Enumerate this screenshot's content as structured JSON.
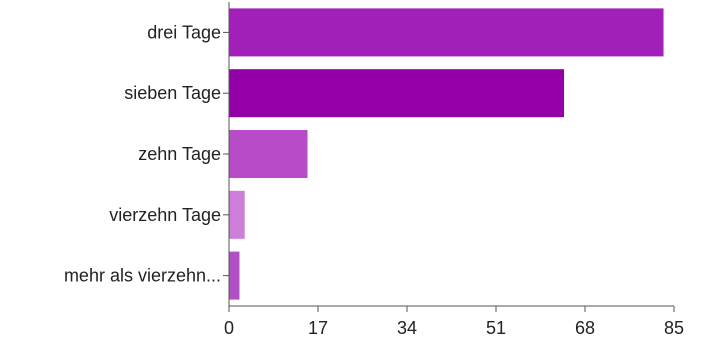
{
  "chart_data": {
    "type": "bar",
    "orientation": "horizontal",
    "categories": [
      "drei Tage",
      "sieben Tage",
      "zehn Tage",
      "vierzehn Tage",
      "mehr als vierzehn..."
    ],
    "values": [
      83,
      64,
      15,
      3,
      2
    ],
    "colors": [
      "#a020b8",
      "#9400a8",
      "#b84cc8",
      "#cc7ed8",
      "#b050c4"
    ],
    "xlim": [
      0,
      85
    ],
    "xticks": [
      0,
      17,
      34,
      51,
      68,
      85
    ],
    "title": "",
    "xlabel": "",
    "ylabel": "",
    "grid": false
  }
}
